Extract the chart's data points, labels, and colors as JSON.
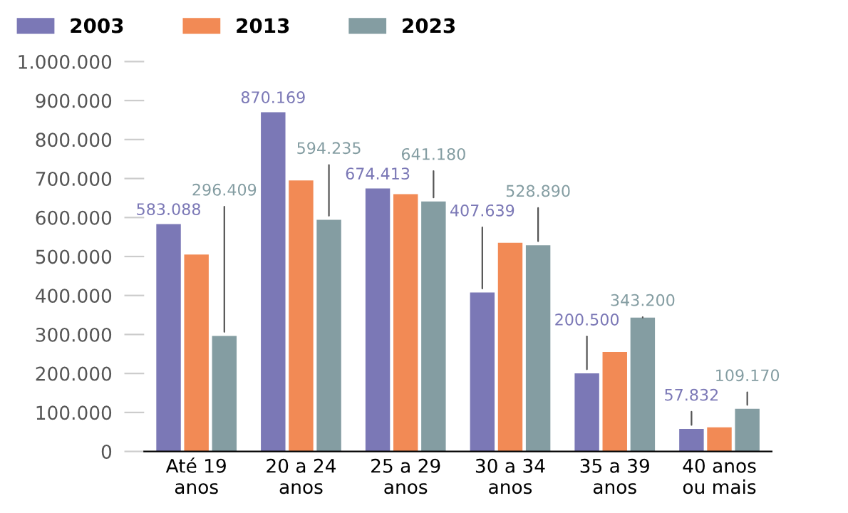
{
  "chart_data": {
    "type": "bar",
    "categories": [
      "Até 19\nanos",
      "20 a 24\nanos",
      "25 a 29\nanos",
      "30 a 34\nanos",
      "35 a 39\nanos",
      "40 anos\nou mais"
    ],
    "series": [
      {
        "name": "2003",
        "color": "#7b78b6",
        "values": [
          583088,
          870169,
          674413,
          407639,
          200500,
          57832
        ],
        "value_labels": [
          "583.088",
          "870.169",
          "674.413",
          "407.639",
          "200.500",
          "57.832"
        ]
      },
      {
        "name": "2013",
        "color": "#f28a55",
        "values": [
          505000,
          695000,
          660000,
          535000,
          255000,
          62000
        ]
      },
      {
        "name": "2023",
        "color": "#849da2",
        "values": [
          296409,
          594235,
          641180,
          528890,
          343200,
          109170
        ],
        "value_labels": [
          "296.409",
          "594.235",
          "641.180",
          "528.890",
          "343.200",
          "109.170"
        ]
      }
    ],
    "ylim": [
      0,
      1000000
    ],
    "yticks": [
      {
        "value": 0,
        "label": "0"
      },
      {
        "value": 100000,
        "label": "100.000"
      },
      {
        "value": 200000,
        "label": "200.000"
      },
      {
        "value": 300000,
        "label": "300.000"
      },
      {
        "value": 400000,
        "label": "400.000"
      },
      {
        "value": 500000,
        "label": "500.000"
      },
      {
        "value": 600000,
        "label": "600.000"
      },
      {
        "value": 700000,
        "label": "700.000"
      },
      {
        "value": 800000,
        "label": "800.000"
      },
      {
        "value": 900000,
        "label": "900.000"
      },
      {
        "value": 1000000,
        "label": "1.000.000"
      }
    ],
    "grid": false,
    "legend": "top left"
  }
}
